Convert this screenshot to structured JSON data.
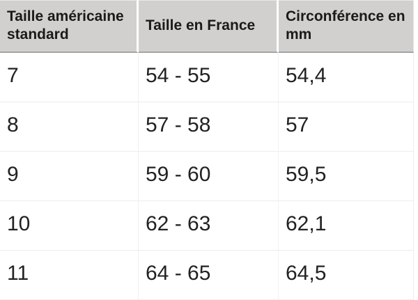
{
  "table": {
    "headers": [
      "Taille américaine standard",
      "Taille en France",
      "Circonférence en mm"
    ],
    "rows": [
      [
        "7",
        "54 - 55",
        "54,4"
      ],
      [
        "8",
        "57 - 58",
        "57"
      ],
      [
        "9",
        "59 - 60",
        "59,5"
      ],
      [
        "10",
        "62 - 63",
        "62,1"
      ],
      [
        "11",
        "64 - 65",
        "64,5"
      ]
    ],
    "colors": {
      "header_background": "#d2d0ce",
      "header_separator": "#ffffff",
      "header_bottom_border": "#a4a4a4",
      "body_grid_line": "#ededed",
      "header_text": "#1a1a1a",
      "body_text": "#222222",
      "page_background": "#ffffff"
    }
  }
}
